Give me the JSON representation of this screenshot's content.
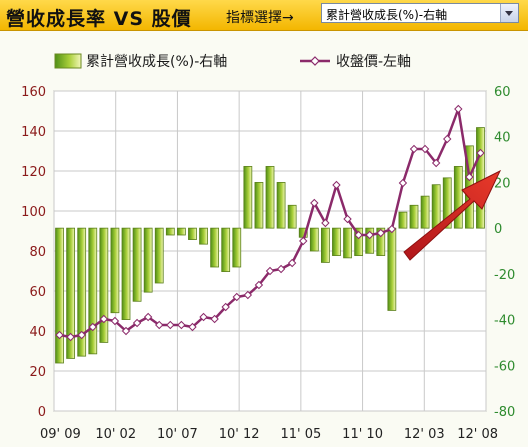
{
  "header": {
    "title": "營收成長率 VS 股價",
    "selector_label": "指標選擇→",
    "selector_value": "累計營收成長(%)-右軸"
  },
  "chart_data": {
    "type": "bar+line",
    "legend": [
      "累計營收成長(%)-右軸",
      "收盤價-左軸"
    ],
    "x_ticks": [
      "09' 09",
      "10' 02",
      "10' 07",
      "10' 12",
      "11' 05",
      "11' 10",
      "12' 03",
      "12' 08"
    ],
    "left_axis": {
      "min": 0,
      "max": 160,
      "ticks": [
        0,
        20,
        40,
        60,
        80,
        100,
        120,
        140,
        160
      ]
    },
    "right_axis": {
      "min": -80,
      "max": 60,
      "ticks": [
        -80,
        -60,
        -40,
        -20,
        0,
        20,
        40,
        60
      ]
    },
    "bars_revenue_growth_pct": [
      -59,
      -57,
      -56,
      -55,
      -50,
      -37,
      -40,
      -32,
      -28,
      -24,
      -3,
      -3,
      -5,
      -7,
      -17,
      -19,
      -17,
      27,
      20,
      27,
      20,
      10,
      -4,
      -10,
      -15,
      -12,
      -13,
      -12,
      -11,
      -12,
      -36,
      7,
      10,
      14,
      19,
      22,
      27,
      36,
      44
    ],
    "line_close_price": [
      38,
      37,
      38,
      42,
      46,
      45,
      40,
      44,
      47,
      43,
      43,
      43,
      42,
      47,
      46,
      52,
      57,
      58,
      63,
      70,
      71,
      74,
      85,
      104,
      94,
      113,
      96,
      88,
      88,
      89,
      91,
      114,
      131,
      131,
      124,
      136,
      151,
      117,
      129
    ],
    "colors": {
      "bar": "#a9cf3a",
      "line": "#8b2a6a",
      "grid": "#c9c9c9",
      "left_tick": "#8b1a1a",
      "right_tick": "#2e8b2e"
    },
    "grid": true,
    "legend_position": "top"
  }
}
